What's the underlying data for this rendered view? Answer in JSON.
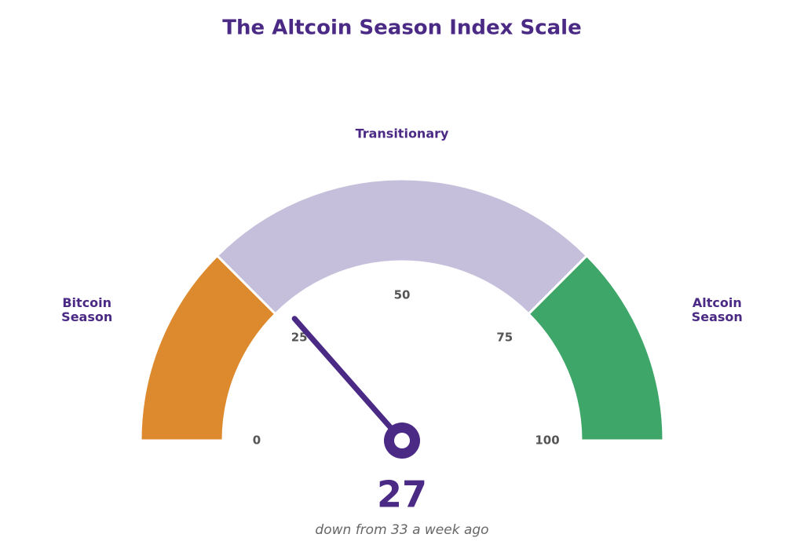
{
  "chart_data": {
    "type": "gauge",
    "title": "The Altcoin Season Index Scale",
    "value": 27,
    "subtitle": "down from 33 a week ago",
    "range": [
      0,
      100
    ],
    "ticks": [
      0,
      25,
      50,
      75,
      100
    ],
    "segments": [
      {
        "name": "Bitcoin Season",
        "from": 0,
        "to": 25,
        "color": "#dd8a2e"
      },
      {
        "name": "Transitionary",
        "from": 25,
        "to": 75,
        "color": "#c6bfdb"
      },
      {
        "name": "Altcoin Season",
        "from": 75,
        "to": 100,
        "color": "#3fa66a"
      }
    ],
    "needle_color": "#4b2a85"
  }
}
